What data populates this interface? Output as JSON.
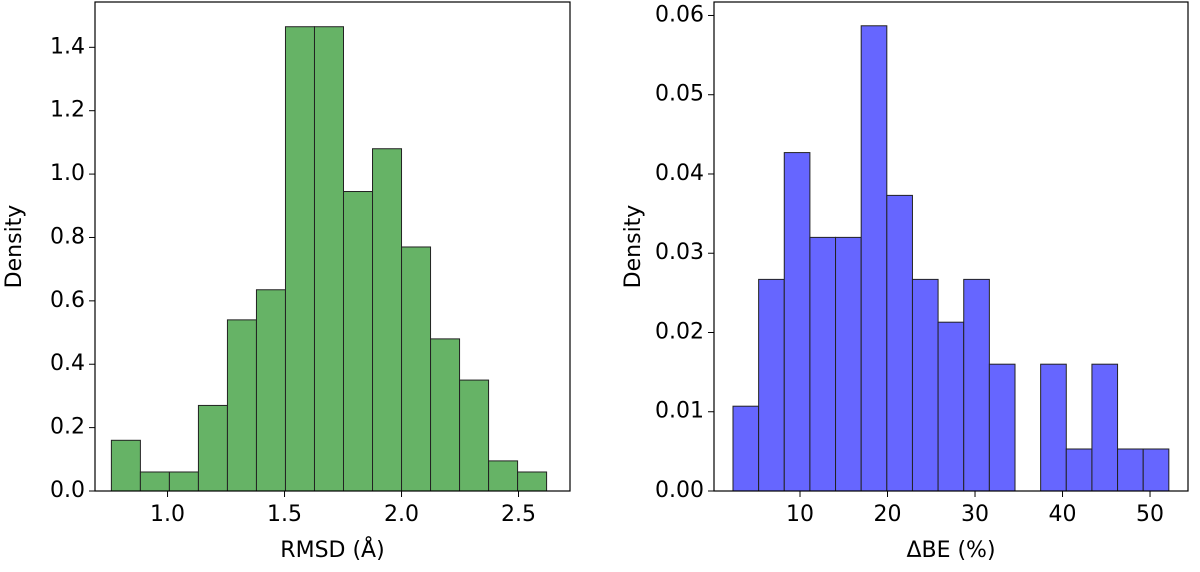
{
  "chart_data": [
    {
      "type": "histogram",
      "xlabel": "RMSD (Å)",
      "ylabel": "Density",
      "color": "#66b366",
      "edgecolor": "#222222",
      "bins": [
        0.76,
        0.884,
        1.008,
        1.132,
        1.256,
        1.38,
        1.504,
        1.628,
        1.752,
        1.876,
        2.0,
        2.124,
        2.248,
        2.372,
        2.496,
        2.62
      ],
      "counts": [
        0.16,
        0.06,
        0.06,
        0.27,
        0.54,
        0.635,
        1.465,
        1.465,
        0.945,
        1.08,
        0.77,
        0.48,
        0.35,
        0.095,
        0.06
      ],
      "xlim": [
        0.69,
        2.72
      ],
      "ylim": [
        0,
        1.543
      ],
      "xticks": [
        {
          "value": 1.0,
          "label": "1.0"
        },
        1.5,
        {
          "value": 2.0,
          "label": "2.0"
        },
        2.5
      ],
      "yticks": [
        {
          "value": 0,
          "label": "0.0"
        },
        0.2,
        0.4,
        0.6,
        0.8,
        {
          "value": 1.0,
          "label": "1.0"
        },
        1.2,
        1.4
      ]
    },
    {
      "type": "histogram",
      "xlabel": "ΔBE (%)",
      "ylabel": "Density",
      "color": "#6666ff",
      "edgecolor": "#222222",
      "bins": [
        2.34,
        5.27,
        8.2,
        11.13,
        14.06,
        16.99,
        19.92,
        22.85,
        25.78,
        28.71,
        31.64,
        34.57,
        37.5,
        40.43,
        43.36,
        46.29,
        49.22,
        52.15
      ],
      "counts": [
        0.0107,
        0.0267,
        0.0427,
        0.032,
        0.032,
        0.0587,
        0.0373,
        0.0267,
        0.0213,
        0.0267,
        0.016,
        0,
        0.016,
        0.0053,
        0.016,
        0.0053,
        0.0053
      ],
      "xlim": [
        0.17,
        54.34
      ],
      "ylim": [
        0,
        0.0617
      ],
      "xticks": [
        10,
        20,
        30,
        40,
        50
      ],
      "yticks": [
        {
          "value": 0,
          "label": "0.00"
        },
        {
          "value": 0.01,
          "label": "0.01"
        },
        {
          "value": 0.02,
          "label": "0.02"
        },
        {
          "value": 0.03,
          "label": "0.03"
        },
        {
          "value": 0.04,
          "label": "0.04"
        },
        {
          "value": 0.05,
          "label": "0.05"
        },
        {
          "value": 0.06,
          "label": "0.06"
        }
      ]
    }
  ]
}
